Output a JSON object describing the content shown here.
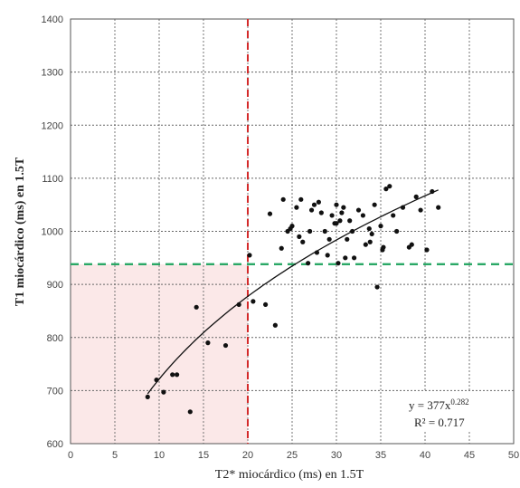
{
  "chart_data": {
    "type": "scatter",
    "title": "",
    "xlabel": "T2* miocárdico (ms) en 1.5T",
    "ylabel": "T1 miocárdico (ms) en 1.5T",
    "xlim": [
      0,
      50
    ],
    "ylim": [
      600,
      1400
    ],
    "xticks": [
      0,
      5,
      10,
      15,
      20,
      25,
      30,
      35,
      40,
      45,
      50
    ],
    "yticks": [
      600,
      700,
      800,
      900,
      1000,
      1100,
      1200,
      1300,
      1400
    ],
    "grid": true,
    "grid_style": "dotted",
    "colors": {
      "points": "#111111",
      "fit": "#111111",
      "vline": "#d42a2a",
      "hline": "#2aa866",
      "shade": "#fbe8e8"
    },
    "reference_lines": {
      "vertical_x": 20,
      "horizontal_y": 938
    },
    "shaded_region": {
      "x": [
        0,
        20
      ],
      "y": [
        600,
        938
      ]
    },
    "fit": {
      "model": "power",
      "a": 377,
      "b": 0.282,
      "x_range": [
        8.7,
        41.5
      ],
      "equation_prefix": "y = 377x",
      "equation_exp": "0.282",
      "r2_label": "R² = 0.717"
    },
    "series": [
      {
        "x": [
          8.7,
          9.7,
          10.5,
          11.5,
          12.0,
          13.5,
          14.2,
          15.5,
          17.5,
          19.0,
          20.2,
          20.6,
          22.0,
          23.1,
          23.8,
          22.5,
          24.0,
          24.5,
          25.0,
          25.5,
          26.0,
          26.2,
          26.8,
          27.2,
          27.5,
          27.8,
          28.0,
          28.3,
          28.7,
          29.0,
          29.2,
          29.5,
          29.8,
          30.0,
          30.2,
          30.4,
          30.6,
          30.8,
          31.0,
          31.2,
          31.5,
          31.8,
          32.0,
          32.5,
          33.0,
          33.3,
          33.7,
          34.0,
          34.3,
          34.6,
          35.0,
          35.3,
          35.6,
          36.0,
          36.4,
          36.8,
          37.5,
          38.5,
          39.0,
          39.5,
          40.2,
          40.8,
          41.5,
          24.8,
          25.8,
          27.0,
          30.0,
          33.8,
          35.2,
          38.2
        ],
        "y": [
          688,
          720,
          697,
          730,
          730,
          660,
          857,
          790,
          785,
          862,
          955,
          868,
          862,
          823,
          968,
          1033,
          1060,
          1000,
          1010,
          1045,
          1060,
          980,
          940,
          1040,
          1050,
          960,
          1055,
          1035,
          1000,
          955,
          985,
          1030,
          1015,
          1050,
          940,
          1020,
          1035,
          1045,
          950,
          985,
          1020,
          1000,
          950,
          1040,
          1030,
          975,
          1005,
          995,
          1050,
          895,
          1010,
          970,
          1080,
          1085,
          1030,
          1000,
          1045,
          975,
          1065,
          1040,
          965,
          1075,
          1045,
          1005,
          990,
          1000,
          1015,
          980,
          965,
          970
        ]
      }
    ]
  }
}
